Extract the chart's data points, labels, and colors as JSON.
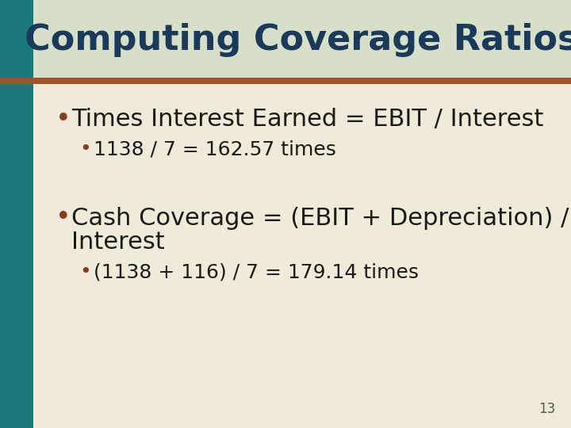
{
  "title": "Computing Coverage Ratios",
  "title_color": "#1a3a5c",
  "title_fontsize": 32,
  "title_bold": true,
  "bg_color_top": "#e8ede8",
  "bg_color_main": "#f0ead8",
  "left_bar_color": "#1a7a7a",
  "accent_line_color": "#a0522d",
  "header_bg_color": "#d8dfc8",
  "bullet_color": "#8b3a1a",
  "bullet1_main": "Times Interest Earned = EBIT / Interest",
  "bullet1_sub": "1138 / 7 = 162.57 times",
  "bullet2_main_line1": "Cash Coverage = (EBIT + Depreciation) /",
  "bullet2_main_line2": "Interest",
  "bullet2_sub": "(1138 + 116) / 7 = 179.14 times",
  "main_text_color": "#1a1a1a",
  "main_bullet_fontsize": 22,
  "sub_bullet_fontsize": 18,
  "page_number": "13",
  "page_number_color": "#555555",
  "page_number_fontsize": 12
}
